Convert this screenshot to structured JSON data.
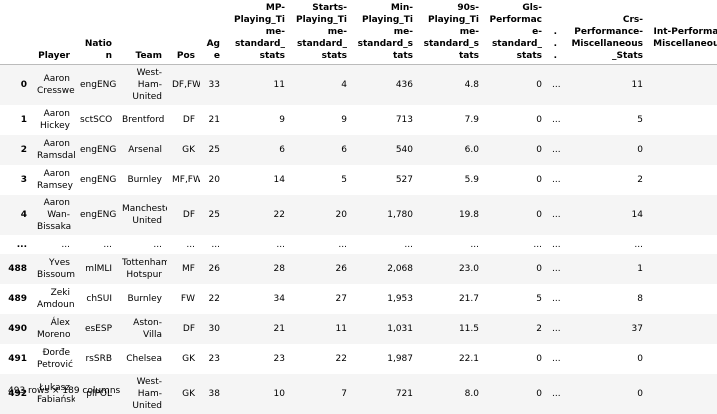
{
  "table": {
    "columns": [
      "Player",
      "Nation",
      "Team",
      "Pos",
      "Age",
      "MP-Playing_Time-standard_stats",
      "Starts-Playing_Time-standard_stats",
      "Min-Playing_Time-standard_stats",
      "90s-Playing_Time-standard_stats",
      "Gls-Performace-standard_stats",
      "...",
      "Crs-Performance-Miscellaneous_Stats",
      "Int-Performance-Miscellaneous_Stats"
    ],
    "rows": [
      [
        "0",
        "Aaron Cresswell",
        "engENG",
        "West-Ham-United",
        "DF,FW",
        "33",
        "11",
        "4",
        "436",
        "4.8",
        "0",
        "...",
        "11"
      ],
      [
        "1",
        "Aaron Hickey",
        "sctSCO",
        "Brentford",
        "DF",
        "21",
        "9",
        "9",
        "713",
        "7.9",
        "0",
        "...",
        "5"
      ],
      [
        "2",
        "Aaron Ramsdale",
        "engENG",
        "Arsenal",
        "GK",
        "25",
        "6",
        "6",
        "540",
        "6.0",
        "0",
        "...",
        "0"
      ],
      [
        "3",
        "Aaron Ramsey",
        "engENG",
        "Burnley",
        "MF,FW",
        "20",
        "14",
        "5",
        "527",
        "5.9",
        "0",
        "...",
        "2"
      ],
      [
        "4",
        "Aaron Wan-Bissaka",
        "engENG",
        "Manchester-United",
        "DF",
        "25",
        "22",
        "20",
        "1,780",
        "19.8",
        "0",
        "...",
        "14"
      ],
      [
        "...",
        "...",
        "...",
        "...",
        "...",
        "...",
        "...",
        "...",
        "...",
        "...",
        "...",
        "...",
        "..."
      ],
      [
        "488",
        "Yves Bissouma",
        "mlMLI",
        "Tottenham-Hotspur",
        "MF",
        "26",
        "28",
        "26",
        "2,068",
        "23.0",
        "0",
        "...",
        "1"
      ],
      [
        "489",
        "Zeki Amdouni",
        "chSUI",
        "Burnley",
        "FW",
        "22",
        "34",
        "27",
        "1,953",
        "21.7",
        "5",
        "...",
        "8"
      ],
      [
        "490",
        "Álex Moreno",
        "esESP",
        "Aston-Villa",
        "DF",
        "30",
        "21",
        "11",
        "1,031",
        "11.5",
        "2",
        "...",
        "37"
      ],
      [
        "491",
        "Đorđe Petrović",
        "rsSRB",
        "Chelsea",
        "GK",
        "23",
        "23",
        "22",
        "1,987",
        "22.1",
        "0",
        "...",
        "0"
      ],
      [
        "492",
        "Łukasz Fabiański",
        "plPOL",
        "West-Ham-United",
        "GK",
        "38",
        "10",
        "7",
        "721",
        "8.0",
        "0",
        "...",
        "0"
      ]
    ]
  },
  "footer": "493 rows × 189 columns"
}
